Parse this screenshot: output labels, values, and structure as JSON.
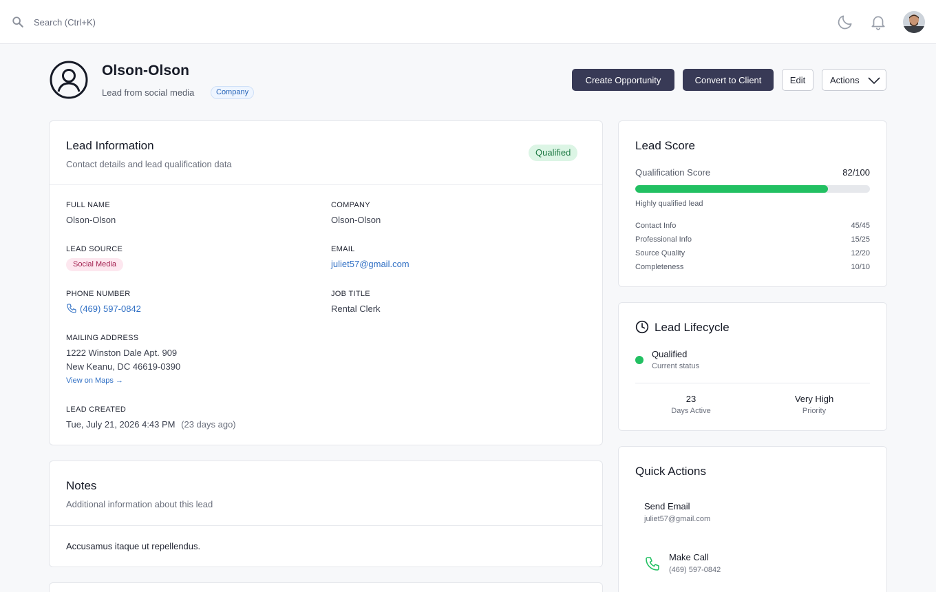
{
  "topbar": {
    "search_placeholder": "Search (Ctrl+K)"
  },
  "lead": {
    "name": "Olson-Olson",
    "subtitle": "Lead from social media",
    "type_badge": "Company"
  },
  "header_actions": {
    "create_opportunity": "Create Opportunity",
    "convert_to_client": "Convert to Client",
    "edit": "Edit",
    "actions": "Actions"
  },
  "info": {
    "title": "Lead Information",
    "description": "Contact details and lead qualification data",
    "status_badge": "Qualified",
    "full_name_label": "FULL NAME",
    "full_name": "Olson-Olson",
    "company_label": "COMPANY",
    "company": "Olson-Olson",
    "lead_source_label": "LEAD SOURCE",
    "lead_source": "Social Media",
    "email_label": "EMAIL",
    "email": "juliet57@gmail.com",
    "phone_label": "PHONE NUMBER",
    "phone": "(469) 597-0842",
    "job_title_label": "JOB TITLE",
    "job_title": "Rental Clerk",
    "address_label": "MAILING ADDRESS",
    "address_line1": "1222 Winston Dale Apt. 909",
    "address_line2": "New Keanu, DC 46619-0390",
    "maps_link": "View on Maps →",
    "created_label": "LEAD CREATED",
    "created_date": "Tue, July 21, 2026 4:43 PM",
    "created_ago": "(23 days ago)"
  },
  "notes": {
    "title": "Notes",
    "description": "Additional information about this lead",
    "body": "Accusamus itaque ut repellendus."
  },
  "score": {
    "title": "Lead Score",
    "label": "Qualification Score",
    "value_text": "82/100",
    "fill_percent": 82,
    "summary": "Highly qualified lead",
    "rows": [
      {
        "label": "Contact Info",
        "value": "45/45"
      },
      {
        "label": "Professional Info",
        "value": "15/25"
      },
      {
        "label": "Source Quality",
        "value": "12/20"
      },
      {
        "label": "Completeness",
        "value": "10/10"
      }
    ],
    "accent": "#22c062"
  },
  "lifecycle": {
    "title": "Lead Lifecycle",
    "status": "Qualified",
    "status_caption": "Current status",
    "days_active": "23",
    "days_active_label": "Days Active",
    "priority": "Very High",
    "priority_label": "Priority"
  },
  "quick_actions": {
    "title": "Quick Actions",
    "send_email_label": "Send Email",
    "send_email_sub": "juliet57@gmail.com",
    "make_call_label": "Make Call",
    "make_call_sub": "(469) 597-0842"
  },
  "icons": {
    "search": "search-icon",
    "moon": "moon-icon",
    "bell": "bell-icon",
    "user_circle": "user-circle-icon",
    "clock": "clock-icon",
    "phone": "phone-icon",
    "chevron": "chevron-down-icon"
  }
}
